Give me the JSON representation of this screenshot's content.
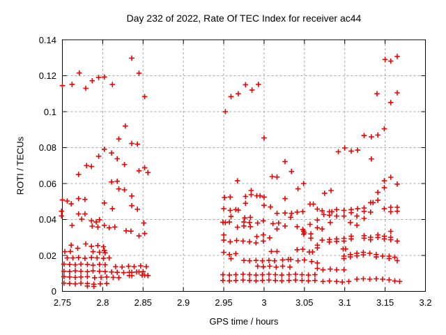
{
  "chart_data": {
    "type": "scatter",
    "title": "Day 232 of 2022, Rate Of TEC Index for receiver ac44",
    "xlabel": "GPS time / hours",
    "ylabel": "ROTI / TECUs",
    "xlim": [
      2.75,
      3.2
    ],
    "ylim": [
      0,
      0.14
    ],
    "x_tick_labels": [
      "2.75",
      "2.8",
      "2.85",
      "2.9",
      "2.95",
      "3",
      "3.05",
      "3.1",
      "3.15",
      "3.2"
    ],
    "y_tick_labels": [
      "0",
      "0.02",
      "0.04",
      "0.06",
      "0.08",
      "0.1",
      "0.12",
      "0.14"
    ],
    "grid": true,
    "legend": "none",
    "marker": "plus",
    "marker_color": "#ee0000",
    "grid_color": "#a8a8a8",
    "border_color": "#000000",
    "background_color": "#ffffff",
    "points": [
      [
        2.75,
        0.1145
      ],
      [
        2.762,
        0.1152
      ],
      [
        2.771,
        0.1215
      ],
      [
        2.779,
        0.113
      ],
      [
        2.787,
        0.1172
      ],
      [
        2.795,
        0.119
      ],
      [
        2.802,
        0.1193
      ],
      [
        2.812,
        0.1151
      ],
      [
        2.836,
        0.1298
      ],
      [
        2.845,
        0.1214
      ],
      [
        2.852,
        0.1084
      ],
      [
        2.828,
        0.092
      ],
      [
        2.82,
        0.0848
      ],
      [
        2.836,
        0.0823
      ],
      [
        2.843,
        0.0819
      ],
      [
        2.802,
        0.0791
      ],
      [
        2.811,
        0.077
      ],
      [
        2.795,
        0.0752
      ],
      [
        2.818,
        0.0738
      ],
      [
        2.827,
        0.0706
      ],
      [
        2.78,
        0.07
      ],
      [
        2.786,
        0.0695
      ],
      [
        2.77,
        0.0651
      ],
      [
        2.845,
        0.0671
      ],
      [
        2.852,
        0.0688
      ],
      [
        2.856,
        0.0661
      ],
      [
        2.811,
        0.0609
      ],
      [
        2.818,
        0.0613
      ],
      [
        2.82,
        0.057
      ],
      [
        2.827,
        0.0565
      ],
      [
        2.836,
        0.0531
      ],
      [
        2.802,
        0.0492
      ],
      [
        2.812,
        0.046
      ],
      [
        2.836,
        0.0477
      ],
      [
        2.843,
        0.0457
      ],
      [
        2.75,
        0.0509
      ],
      [
        2.756,
        0.0503
      ],
      [
        2.761,
        0.0487
      ],
      [
        2.77,
        0.0516
      ],
      [
        2.778,
        0.0512
      ],
      [
        2.749,
        0.0446
      ],
      [
        2.749,
        0.042
      ],
      [
        2.77,
        0.0431
      ],
      [
        2.778,
        0.0431
      ],
      [
        2.774,
        0.0402
      ],
      [
        2.762,
        0.0367
      ],
      [
        2.786,
        0.0393
      ],
      [
        2.792,
        0.0386
      ],
      [
        2.796,
        0.0399
      ],
      [
        2.787,
        0.0363
      ],
      [
        2.794,
        0.0358
      ],
      [
        2.802,
        0.0367
      ],
      [
        2.808,
        0.0354
      ],
      [
        2.815,
        0.0358
      ],
      [
        2.829,
        0.0337
      ],
      [
        2.835,
        0.0335
      ],
      [
        2.851,
        0.038
      ],
      [
        2.845,
        0.0309
      ],
      [
        2.852,
        0.0322
      ],
      [
        2.761,
        0.0257
      ],
      [
        2.769,
        0.024
      ],
      [
        2.779,
        0.0264
      ],
      [
        2.786,
        0.0251
      ],
      [
        2.794,
        0.0255
      ],
      [
        2.801,
        0.0248
      ],
      [
        2.802,
        0.0228
      ],
      [
        2.753,
        0.0221
      ],
      [
        2.76,
        0.0222
      ],
      [
        2.788,
        0.0221
      ],
      [
        2.796,
        0.0218
      ],
      [
        2.803,
        0.0215
      ],
      [
        2.756,
        0.0186
      ],
      [
        2.763,
        0.0186
      ],
      [
        2.77,
        0.0188
      ],
      [
        2.778,
        0.0184
      ],
      [
        2.786,
        0.0188
      ],
      [
        2.793,
        0.0186
      ],
      [
        2.801,
        0.0184
      ],
      [
        2.808,
        0.0186
      ],
      [
        2.752,
        0.0152
      ],
      [
        2.759,
        0.015
      ],
      [
        2.766,
        0.0148
      ],
      [
        2.773,
        0.0152
      ],
      [
        2.781,
        0.015
      ],
      [
        2.788,
        0.0146
      ],
      [
        2.796,
        0.015
      ],
      [
        2.803,
        0.0148
      ],
      [
        2.816,
        0.0138
      ],
      [
        2.824,
        0.0136
      ],
      [
        2.832,
        0.014
      ],
      [
        2.839,
        0.0138
      ],
      [
        2.847,
        0.0142
      ],
      [
        2.854,
        0.0138
      ],
      [
        2.752,
        0.0112
      ],
      [
        2.759,
        0.011
      ],
      [
        2.766,
        0.0114
      ],
      [
        2.773,
        0.0112
      ],
      [
        2.781,
        0.011
      ],
      [
        2.788,
        0.0114
      ],
      [
        2.796,
        0.0112
      ],
      [
        2.803,
        0.011
      ],
      [
        2.811,
        0.0108
      ],
      [
        2.818,
        0.0106
      ],
      [
        2.826,
        0.0104
      ],
      [
        2.833,
        0.0106
      ],
      [
        2.836,
        0.0106
      ],
      [
        2.842,
        0.0108
      ],
      [
        2.845,
        0.0108
      ],
      [
        2.85,
        0.011
      ],
      [
        2.752,
        0.0082
      ],
      [
        2.759,
        0.008
      ],
      [
        2.766,
        0.0078
      ],
      [
        2.773,
        0.008
      ],
      [
        2.781,
        0.0082
      ],
      [
        2.79,
        0.0076
      ],
      [
        2.798,
        0.0078
      ],
      [
        2.805,
        0.008
      ],
      [
        2.813,
        0.0078
      ],
      [
        2.82,
        0.0076
      ],
      [
        2.833,
        0.0088
      ],
      [
        2.836,
        0.0088
      ],
      [
        2.849,
        0.009
      ],
      [
        2.852,
        0.009
      ],
      [
        2.856,
        0.0088
      ],
      [
        2.752,
        0.0046
      ],
      [
        2.759,
        0.0044
      ],
      [
        2.766,
        0.0042
      ],
      [
        2.773,
        0.0046
      ],
      [
        2.781,
        0.0044
      ],
      [
        2.789,
        0.004
      ],
      [
        2.797,
        0.0042
      ],
      [
        2.805,
        0.0044
      ],
      [
        2.781,
        0.003
      ],
      [
        2.789,
        0.0028
      ],
      [
        2.952,
        0.1
      ],
      [
        2.959,
        0.1084
      ],
      [
        2.968,
        0.11
      ],
      [
        2.977,
        0.115
      ],
      [
        2.985,
        0.112
      ],
      [
        2.993,
        0.1152
      ],
      [
        3.0,
        0.0854
      ],
      [
        3.026,
        0.0722
      ],
      [
        3.034,
        0.0667
      ],
      [
        3.01,
        0.0639
      ],
      [
        3.016,
        0.0636
      ],
      [
        2.967,
        0.0615
      ],
      [
        3.049,
        0.06
      ],
      [
        3.042,
        0.0571
      ],
      [
        2.984,
        0.0561
      ],
      [
        2.977,
        0.0528
      ],
      [
        2.984,
        0.0538
      ],
      [
        2.991,
        0.0532
      ],
      [
        2.995,
        0.0532
      ],
      [
        3.0,
        0.0525
      ],
      [
        2.951,
        0.0522
      ],
      [
        2.958,
        0.0525
      ],
      [
        3.026,
        0.0516
      ],
      [
        2.977,
        0.049
      ],
      [
        3.0,
        0.0479
      ],
      [
        3.008,
        0.047
      ],
      [
        3.057,
        0.0486
      ],
      [
        3.061,
        0.0486
      ],
      [
        3.066,
        0.0458
      ],
      [
        2.95,
        0.046
      ],
      [
        2.958,
        0.0451
      ],
      [
        2.965,
        0.0455
      ],
      [
        2.968,
        0.0452
      ],
      [
        3.016,
        0.0434
      ],
      [
        3.026,
        0.0436
      ],
      [
        3.034,
        0.0434
      ],
      [
        3.041,
        0.0441
      ],
      [
        3.048,
        0.0444
      ],
      [
        3.033,
        0.0412
      ],
      [
        2.959,
        0.0417
      ],
      [
        2.976,
        0.0409
      ],
      [
        2.983,
        0.0412
      ],
      [
        2.949,
        0.0385
      ],
      [
        2.952,
        0.0383
      ],
      [
        2.957,
        0.0386
      ],
      [
        2.975,
        0.0386
      ],
      [
        2.982,
        0.0383
      ],
      [
        2.992,
        0.038
      ],
      [
        2.999,
        0.0393
      ],
      [
        3.011,
        0.0377
      ],
      [
        3.018,
        0.038
      ],
      [
        3.026,
        0.0364
      ],
      [
        2.967,
        0.0357
      ],
      [
        2.975,
        0.0364
      ],
      [
        2.983,
        0.036
      ],
      [
        3.041,
        0.036
      ],
      [
        3.016,
        0.0347
      ],
      [
        3.048,
        0.0345
      ],
      [
        3.05,
        0.0326
      ],
      [
        3.049,
        0.0335
      ],
      [
        3.049,
        0.0318
      ],
      [
        3.057,
        0.0373
      ],
      [
        3.058,
        0.032
      ],
      [
        3.058,
        0.0296
      ],
      [
        2.95,
        0.0314
      ],
      [
        2.991,
        0.0305
      ],
      [
        2.999,
        0.0314
      ],
      [
        3.007,
        0.0298
      ],
      [
        2.95,
        0.0285
      ],
      [
        2.958,
        0.0276
      ],
      [
        2.966,
        0.0283
      ],
      [
        2.974,
        0.028
      ],
      [
        2.982,
        0.0276
      ],
      [
        2.99,
        0.027
      ],
      [
        2.999,
        0.028
      ],
      [
        2.95,
        0.0217
      ],
      [
        2.957,
        0.0205
      ],
      [
        2.965,
        0.021
      ],
      [
        2.959,
        0.0182
      ],
      [
        3.009,
        0.0222
      ],
      [
        3.016,
        0.0222
      ],
      [
        3.041,
        0.0232
      ],
      [
        3.048,
        0.0234
      ],
      [
        3.056,
        0.0219
      ],
      [
        3.06,
        0.0219
      ],
      [
        2.975,
        0.0172
      ],
      [
        2.982,
        0.017
      ],
      [
        2.99,
        0.0172
      ],
      [
        2.998,
        0.017
      ],
      [
        3.006,
        0.0172
      ],
      [
        3.013,
        0.017
      ],
      [
        3.023,
        0.0175
      ],
      [
        3.03,
        0.0178
      ],
      [
        3.033,
        0.0178
      ],
      [
        3.042,
        0.017
      ],
      [
        3.05,
        0.0175
      ],
      [
        3.059,
        0.0166
      ],
      [
        2.992,
        0.014
      ],
      [
        2.999,
        0.0137
      ],
      [
        3.007,
        0.014
      ],
      [
        3.015,
        0.0135
      ],
      [
        3.023,
        0.014
      ],
      [
        3.032,
        0.0135
      ],
      [
        2.949,
        0.0093
      ],
      [
        2.957,
        0.0091
      ],
      [
        2.965,
        0.0093
      ],
      [
        2.974,
        0.0095
      ],
      [
        2.982,
        0.0093
      ],
      [
        2.99,
        0.0091
      ],
      [
        2.998,
        0.0093
      ],
      [
        3.006,
        0.0095
      ],
      [
        3.014,
        0.0093
      ],
      [
        3.022,
        0.0091
      ],
      [
        3.031,
        0.0093
      ],
      [
        3.039,
        0.0095
      ],
      [
        3.047,
        0.0093
      ],
      [
        3.055,
        0.0091
      ],
      [
        3.063,
        0.0093
      ],
      [
        2.949,
        0.0061
      ],
      [
        2.957,
        0.0059
      ],
      [
        2.965,
        0.0061
      ],
      [
        2.974,
        0.0063
      ],
      [
        2.982,
        0.0061
      ],
      [
        2.99,
        0.0059
      ],
      [
        2.998,
        0.0061
      ],
      [
        3.006,
        0.0063
      ],
      [
        3.014,
        0.0061
      ],
      [
        3.022,
        0.0059
      ],
      [
        3.031,
        0.0061
      ],
      [
        3.039,
        0.0063
      ],
      [
        3.047,
        0.0061
      ],
      [
        3.055,
        0.0059
      ],
      [
        3.063,
        0.0061
      ],
      [
        3.15,
        0.129
      ],
      [
        3.157,
        0.1281
      ],
      [
        3.165,
        0.1307
      ],
      [
        3.14,
        0.11
      ],
      [
        3.165,
        0.1105
      ],
      [
        3.157,
        0.1051
      ],
      [
        3.149,
        0.0905
      ],
      [
        3.124,
        0.0867
      ],
      [
        3.133,
        0.086
      ],
      [
        3.141,
        0.087
      ],
      [
        3.1,
        0.0798
      ],
      [
        3.092,
        0.0777
      ],
      [
        3.108,
        0.0781
      ],
      [
        3.116,
        0.0786
      ],
      [
        3.133,
        0.0737
      ],
      [
        3.149,
        0.0615
      ],
      [
        3.157,
        0.0635
      ],
      [
        3.165,
        0.0597
      ],
      [
        3.149,
        0.0577
      ],
      [
        3.075,
        0.0546
      ],
      [
        3.083,
        0.0561
      ],
      [
        3.141,
        0.0551
      ],
      [
        3.141,
        0.0507
      ],
      [
        3.132,
        0.0494
      ],
      [
        3.135,
        0.0494
      ],
      [
        3.066,
        0.0397
      ],
      [
        3.066,
        0.0354
      ],
      [
        3.066,
        0.0257
      ],
      [
        3.066,
        0.0242
      ],
      [
        3.066,
        0.0158
      ],
      [
        3.066,
        0.0128
      ],
      [
        3.072,
        0.0448
      ],
      [
        3.081,
        0.0443
      ],
      [
        3.084,
        0.0443
      ],
      [
        3.09,
        0.0455
      ],
      [
        3.099,
        0.0451
      ],
      [
        3.108,
        0.0455
      ],
      [
        3.108,
        0.0438
      ],
      [
        3.116,
        0.046
      ],
      [
        3.124,
        0.0464
      ],
      [
        3.124,
        0.0445
      ],
      [
        3.132,
        0.0441
      ],
      [
        3.149,
        0.046
      ],
      [
        3.157,
        0.0468
      ],
      [
        3.165,
        0.0468
      ],
      [
        3.165,
        0.0446
      ],
      [
        3.157,
        0.0443
      ],
      [
        3.074,
        0.0427
      ],
      [
        3.081,
        0.0424
      ],
      [
        3.09,
        0.0419
      ],
      [
        3.099,
        0.0419
      ],
      [
        3.115,
        0.0419
      ],
      [
        3.124,
        0.0406
      ],
      [
        3.082,
        0.0383
      ],
      [
        3.107,
        0.0383
      ],
      [
        3.115,
        0.0368
      ],
      [
        3.072,
        0.0347
      ],
      [
        3.157,
        0.0334
      ],
      [
        3.108,
        0.0307
      ],
      [
        3.108,
        0.0292
      ],
      [
        3.099,
        0.0295
      ],
      [
        3.099,
        0.028
      ],
      [
        3.124,
        0.031
      ],
      [
        3.124,
        0.0296
      ],
      [
        3.132,
        0.0301
      ],
      [
        3.132,
        0.0287
      ],
      [
        3.141,
        0.0314
      ],
      [
        3.141,
        0.03
      ],
      [
        3.149,
        0.0307
      ],
      [
        3.149,
        0.0292
      ],
      [
        3.157,
        0.0301
      ],
      [
        3.157,
        0.0287
      ],
      [
        3.165,
        0.028
      ],
      [
        3.072,
        0.0285
      ],
      [
        3.081,
        0.0288
      ],
      [
        3.081,
        0.0275
      ],
      [
        3.09,
        0.0292
      ],
      [
        3.09,
        0.0278
      ],
      [
        3.098,
        0.0236
      ],
      [
        3.101,
        0.0236
      ],
      [
        3.107,
        0.0205
      ],
      [
        3.107,
        0.0192
      ],
      [
        3.115,
        0.0212
      ],
      [
        3.115,
        0.0198
      ],
      [
        3.123,
        0.0217
      ],
      [
        3.123,
        0.0203
      ],
      [
        3.131,
        0.0212
      ],
      [
        3.139,
        0.0205
      ],
      [
        3.139,
        0.0192
      ],
      [
        3.147,
        0.0196
      ],
      [
        3.155,
        0.0196
      ],
      [
        3.155,
        0.0183
      ],
      [
        3.162,
        0.019
      ],
      [
        3.165,
        0.0171
      ],
      [
        3.099,
        0.0196
      ],
      [
        3.099,
        0.0183
      ],
      [
        3.073,
        0.012
      ],
      [
        3.082,
        0.0124
      ],
      [
        3.09,
        0.012
      ],
      [
        3.099,
        0.012
      ],
      [
        3.073,
        0.0055
      ],
      [
        3.081,
        0.0058
      ],
      [
        3.09,
        0.0055
      ],
      [
        3.097,
        0.0052
      ],
      [
        3.105,
        0.0055
      ],
      [
        3.115,
        0.0068
      ],
      [
        3.123,
        0.007
      ],
      [
        3.131,
        0.0068
      ],
      [
        3.139,
        0.007
      ],
      [
        3.147,
        0.0068
      ],
      [
        3.155,
        0.0064
      ],
      [
        3.162,
        0.0058
      ],
      [
        3.168,
        0.0055
      ]
    ]
  }
}
